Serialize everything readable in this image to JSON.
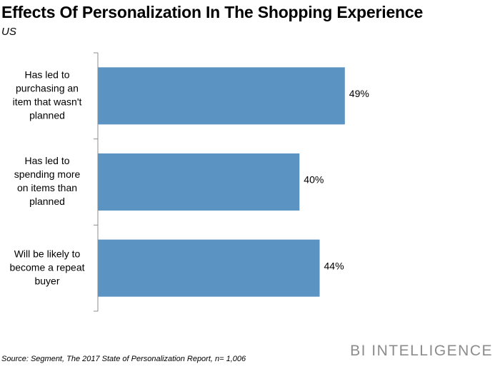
{
  "chart_data": {
    "type": "bar",
    "orientation": "horizontal",
    "title": "Effects Of Personalization In The Shopping Experience",
    "subtitle": "US",
    "categories": [
      [
        "Has led to",
        "purchasing an",
        "item that wasn't",
        "planned"
      ],
      [
        "Has led to",
        "spending more",
        "on items than",
        "planned"
      ],
      [
        "Will be likely to",
        "become a repeat",
        "buyer"
      ]
    ],
    "values": [
      49,
      40,
      44
    ],
    "value_labels": [
      "49%",
      "40%",
      "44%"
    ],
    "xlim": [
      0,
      70
    ],
    "grid": false,
    "bar_color": "#5b93c2"
  },
  "source": "Source: Segment, The 2017 State of Personalization Report, n= 1,006",
  "brand": "BI INTELLIGENCE"
}
